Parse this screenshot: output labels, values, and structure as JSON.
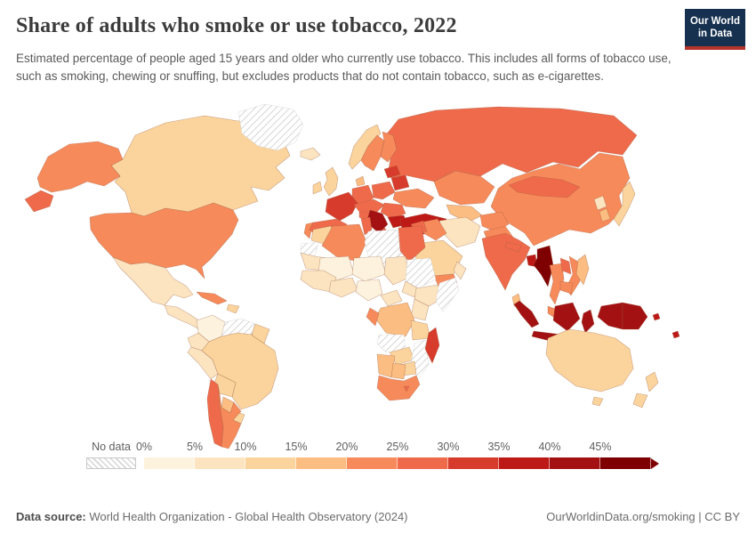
{
  "header": {
    "title": "Share of adults who smoke or use tobacco, 2022",
    "subtitle": "Estimated percentage of people aged 15 years and older who currently use tobacco. This includes all forms of tobacco use, such as smoking, chewing or snuffing, but excludes products that do not contain tobacco, such as e-cigarettes.",
    "logo": {
      "line1": "Our World",
      "line2": "in Data",
      "bg": "#16304f",
      "accent": "#b5332b"
    }
  },
  "legend": {
    "no_data_label": "No data"
  },
  "footer": {
    "source_label": "Data source:",
    "source_text": " World Health Organization - Global Health Observatory (2024)",
    "link": "OurWorldinData.org/smoking | CC BY"
  },
  "chart_data": {
    "type": "choropleth_map",
    "geography": "world",
    "title": "Share of adults who smoke or use tobacco, 2022",
    "year": "2022",
    "unit": "% of adults aged 15+ who currently use tobacco",
    "legend_position": "bottom",
    "color_bins": [
      {
        "tick": "0%",
        "range": "0-5%",
        "color": "#fdf2dd"
      },
      {
        "tick": "5%",
        "range": "5-10%",
        "color": "#fce4c0"
      },
      {
        "tick": "10%",
        "range": "10-15%",
        "color": "#fbd49d"
      },
      {
        "tick": "15%",
        "range": "15-20%",
        "color": "#fbbd81"
      },
      {
        "tick": "20%",
        "range": "20-25%",
        "color": "#f78a5a"
      },
      {
        "tick": "25%",
        "range": "25-30%",
        "color": "#ef6a4b"
      },
      {
        "tick": "30%",
        "range": "30-35%",
        "color": "#d73b2b"
      },
      {
        "tick": "35%",
        "range": "35-40%",
        "color": "#bd1a17"
      },
      {
        "tick": "40%",
        "range": "40-45%",
        "color": "#a31113"
      },
      {
        "tick": "45%",
        "range": "45%+",
        "color": "#7f0000"
      }
    ],
    "no_data": {
      "label": "No data",
      "countries": [
        "Greenland",
        "Venezuela",
        "Western Sahara",
        "Libya",
        "Sudan",
        "Somalia",
        "Angola",
        "Mozambique"
      ]
    },
    "regions": {
      "united-states": {
        "label": "United States",
        "bin": "20-25%",
        "color": "#f78a5a"
      },
      "canada": {
        "label": "Canada",
        "bin": "10-15%",
        "color": "#fbd49d"
      },
      "greenland": {
        "label": "Greenland",
        "bin": "No data",
        "color": null
      },
      "mexico": {
        "label": "Mexico",
        "bin": "5-10%",
        "color": "#fce4c0"
      },
      "central-america": {
        "label": "Central America",
        "bin": "5-10%",
        "color": "#fce4c0"
      },
      "cuba": {
        "label": "Cuba",
        "bin": "20-25%",
        "color": "#f78a5a"
      },
      "hispaniola": {
        "label": "Haiti / Dominican Rep.",
        "bin": "10-15%",
        "color": "#fbd49d"
      },
      "colombia": {
        "label": "Colombia",
        "bin": "0-5%",
        "color": "#fdf2dd"
      },
      "venezuela": {
        "label": "Venezuela",
        "bin": "No data",
        "color": null
      },
      "guyanas": {
        "label": "Guyana / Suriname",
        "bin": "10-15%",
        "color": "#fbd49d"
      },
      "ecuador": {
        "label": "Ecuador",
        "bin": "5-10%",
        "color": "#fce4c0"
      },
      "peru": {
        "label": "Peru",
        "bin": "5-10%",
        "color": "#fce4c0"
      },
      "brazil": {
        "label": "Brazil",
        "bin": "10-15%",
        "color": "#fbd49d"
      },
      "bolivia": {
        "label": "Bolivia",
        "bin": "10-15%",
        "color": "#fbd49d"
      },
      "paraguay": {
        "label": "Paraguay",
        "bin": "15-20%",
        "color": "#fbbd81"
      },
      "uruguay": {
        "label": "Uruguay",
        "bin": "10-15%",
        "color": "#fbd49d"
      },
      "chile": {
        "label": "Chile",
        "bin": "25-30%",
        "color": "#ef6a4b"
      },
      "argentina": {
        "label": "Argentina",
        "bin": "20-25%",
        "color": "#f78a5a"
      },
      "iceland": {
        "label": "Iceland",
        "bin": "5-10%",
        "color": "#fce4c0"
      },
      "ireland": {
        "label": "Ireland",
        "bin": "10-15%",
        "color": "#fbd49d"
      },
      "united-kingdom": {
        "label": "United Kingdom",
        "bin": "10-15%",
        "color": "#fbd49d"
      },
      "norway": {
        "label": "Norway",
        "bin": "10-15%",
        "color": "#fbd49d"
      },
      "sweden": {
        "label": "Sweden",
        "bin": "20-25%",
        "color": "#f78a5a"
      },
      "finland": {
        "label": "Finland",
        "bin": "20-25%",
        "color": "#f78a5a"
      },
      "denmark": {
        "label": "Denmark",
        "bin": "15-20%",
        "color": "#fbbd81"
      },
      "germany": {
        "label": "Germany",
        "bin": "25-30%",
        "color": "#ef6a4b"
      },
      "france": {
        "label": "France",
        "bin": "30-35%",
        "color": "#d73b2b"
      },
      "spain": {
        "label": "Spain",
        "bin": "25-30%",
        "color": "#ef6a4b"
      },
      "portugal": {
        "label": "Portugal",
        "bin": "20-25%",
        "color": "#f78a5a"
      },
      "italy": {
        "label": "Italy",
        "bin": "25-30%",
        "color": "#ef6a4b"
      },
      "central-europe": {
        "label": "Central Europe",
        "bin": "25-30%",
        "color": "#ef6a4b"
      },
      "poland": {
        "label": "Poland",
        "bin": "25-30%",
        "color": "#ef6a4b"
      },
      "baltics": {
        "label": "Baltic states",
        "bin": "30-35%",
        "color": "#d73b2b"
      },
      "belarus": {
        "label": "Belarus",
        "bin": "30-35%",
        "color": "#d73b2b"
      },
      "ukraine": {
        "label": "Ukraine",
        "bin": "20-25%",
        "color": "#f78a5a"
      },
      "romania": {
        "label": "Romania",
        "bin": "25-30%",
        "color": "#ef6a4b"
      },
      "serbia-balkans": {
        "label": "Serbia / Balkans",
        "bin": "40-45%",
        "color": "#a31113"
      },
      "bulgaria": {
        "label": "Bulgaria",
        "bin": "35-40%",
        "color": "#bd1a17"
      },
      "greece": {
        "label": "Greece",
        "bin": "35-40%",
        "color": "#bd1a17"
      },
      "turkey": {
        "label": "Turkey",
        "bin": "35-40%",
        "color": "#bd1a17"
      },
      "russia": {
        "label": "Russia",
        "bin": "25-30%",
        "color": "#ef6a4b"
      },
      "kazakhstan": {
        "label": "Kazakhstan",
        "bin": "20-25%",
        "color": "#f78a5a"
      },
      "central-asia": {
        "label": "Uzbekistan / Turkmenistan",
        "bin": "15-20%",
        "color": "#fbbd81"
      },
      "iran": {
        "label": "Iran",
        "bin": "5-10%",
        "color": "#fce4c0"
      },
      "iraq": {
        "label": "Iraq",
        "bin": "20-25%",
        "color": "#f78a5a"
      },
      "syria": {
        "label": "Syria",
        "bin": "25-30%",
        "color": "#ef6a4b"
      },
      "jordan": {
        "label": "Jordan",
        "bin": "40-45%",
        "color": "#a31113"
      },
      "saudi-arabia": {
        "label": "Saudi Arabia",
        "bin": "10-15%",
        "color": "#fbd49d"
      },
      "yemen": {
        "label": "Yemen",
        "bin": "20-25%",
        "color": "#f78a5a"
      },
      "oman": {
        "label": "Oman",
        "bin": "5-10%",
        "color": "#fce4c0"
      },
      "afghanistan": {
        "label": "Afghanistan",
        "bin": "20-25%",
        "color": "#f78a5a"
      },
      "pakistan": {
        "label": "Pakistan",
        "bin": "20-25%",
        "color": "#f78a5a"
      },
      "morocco": {
        "label": "Morocco",
        "bin": "10-15%",
        "color": "#fbd49d"
      },
      "western-sahara": {
        "label": "Western Sahara",
        "bin": "No data",
        "color": null
      },
      "mauritania": {
        "label": "Mauritania",
        "bin": "5-10%",
        "color": "#fce4c0"
      },
      "algeria": {
        "label": "Algeria",
        "bin": "20-25%",
        "color": "#f78a5a"
      },
      "tunisia": {
        "label": "Tunisia",
        "bin": "25-30%",
        "color": "#ef6a4b"
      },
      "libya": {
        "label": "Libya",
        "bin": "No data",
        "color": null
      },
      "egypt": {
        "label": "Egypt",
        "bin": "25-30%",
        "color": "#ef6a4b"
      },
      "mali": {
        "label": "Mali",
        "bin": "0-5%",
        "color": "#fdf2dd"
      },
      "niger": {
        "label": "Niger",
        "bin": "0-5%",
        "color": "#fdf2dd"
      },
      "chad": {
        "label": "Chad",
        "bin": "5-10%",
        "color": "#fce4c0"
      },
      "sudan": {
        "label": "Sudan",
        "bin": "No data",
        "color": null
      },
      "south-sudan": {
        "label": "South Sudan",
        "bin": "5-10%",
        "color": "#fce4c0"
      },
      "west-africa": {
        "label": "Senegal / Guinea",
        "bin": "5-10%",
        "color": "#fce4c0"
      },
      "ghana-coast": {
        "label": "Côte d'Ivoire / Ghana",
        "bin": "5-10%",
        "color": "#fce4c0"
      },
      "nigeria": {
        "label": "Nigeria",
        "bin": "0-5%",
        "color": "#fdf2dd"
      },
      "cameroon": {
        "label": "Cameroon",
        "bin": "5-10%",
        "color": "#fce4c0"
      },
      "ethiopia": {
        "label": "Ethiopia",
        "bin": "5-10%",
        "color": "#fce4c0"
      },
      "somalia": {
        "label": "Somalia",
        "bin": "No data",
        "color": null
      },
      "kenya": {
        "label": "Kenya",
        "bin": "5-10%",
        "color": "#fce4c0"
      },
      "dr-congo": {
        "label": "Democratic Republic of Congo",
        "bin": "15-20%",
        "color": "#fbbd81"
      },
      "congo": {
        "label": "Congo",
        "bin": "20-25%",
        "color": "#f78a5a"
      },
      "angola": {
        "label": "Angola",
        "bin": "No data",
        "color": null
      },
      "tanzania": {
        "label": "Tanzania",
        "bin": "10-15%",
        "color": "#fbd49d"
      },
      "zambia": {
        "label": "Zambia",
        "bin": "10-15%",
        "color": "#fbd49d"
      },
      "mozambique": {
        "label": "Mozambique",
        "bin": "No data",
        "color": null
      },
      "zimbabwe": {
        "label": "Zimbabwe",
        "bin": "10-15%",
        "color": "#fbd49d"
      },
      "namibia": {
        "label": "Namibia",
        "bin": "15-20%",
        "color": "#fbbd81"
      },
      "botswana": {
        "label": "Botswana",
        "bin": "15-20%",
        "color": "#fbbd81"
      },
      "south-africa": {
        "label": "South Africa",
        "bin": "20-25%",
        "color": "#f78a5a"
      },
      "lesotho": {
        "label": "Lesotho",
        "bin": "25-30%",
        "color": "#ef6a4b"
      },
      "madagascar": {
        "label": "Madagascar",
        "bin": "30-35%",
        "color": "#d73b2b"
      },
      "india": {
        "label": "India",
        "bin": "25-30%",
        "color": "#ef6a4b"
      },
      "nepal": {
        "label": "Nepal",
        "bin": "25-30%",
        "color": "#ef6a4b"
      },
      "bangladesh": {
        "label": "Bangladesh",
        "bin": "35-40%",
        "color": "#bd1a17"
      },
      "sri-lanka": {
        "label": "Sri Lanka",
        "bin": "15-20%",
        "color": "#fbbd81"
      },
      "myanmar": {
        "label": "Myanmar",
        "bin": "45%+",
        "color": "#7f0000"
      },
      "thailand": {
        "label": "Thailand",
        "bin": "20-25%",
        "color": "#f78a5a"
      },
      "laos": {
        "label": "Laos",
        "bin": "25-30%",
        "color": "#ef6a4b"
      },
      "vietnam": {
        "label": "Vietnam",
        "bin": "20-25%",
        "color": "#f78a5a"
      },
      "cambodia": {
        "label": "Cambodia",
        "bin": "20-25%",
        "color": "#f78a5a"
      },
      "malaysia": {
        "label": "Malaysia",
        "bin": "20-25%",
        "color": "#f78a5a"
      },
      "china": {
        "label": "China",
        "bin": "20-25%",
        "color": "#f78a5a"
      },
      "mongolia": {
        "label": "Mongolia",
        "bin": "25-30%",
        "color": "#ef6a4b"
      },
      "north-korea": {
        "label": "North Korea",
        "bin": "5-10%",
        "color": "#fce4c0"
      },
      "south-korea": {
        "label": "South Korea",
        "bin": "15-20%",
        "color": "#fbbd81"
      },
      "japan": {
        "label": "Japan",
        "bin": "10-15%",
        "color": "#fbd49d"
      },
      "philippines": {
        "label": "Philippines",
        "bin": "15-20%",
        "color": "#fbbd81"
      },
      "indonesia": {
        "label": "Indonesia",
        "bin": "40-45%",
        "color": "#a31113"
      },
      "papua-new-guinea": {
        "label": "Papua New Guinea",
        "bin": "40-45%",
        "color": "#a31113"
      },
      "solomon-islands": {
        "label": "Solomon Islands",
        "bin": "35-40%",
        "color": "#bd1a17"
      },
      "fiji": {
        "label": "Fiji",
        "bin": "35-40%",
        "color": "#bd1a17"
      },
      "australia": {
        "label": "Australia",
        "bin": "10-15%",
        "color": "#fbd49d"
      },
      "new-zealand": {
        "label": "New Zealand",
        "bin": "10-15%",
        "color": "#fbd49d"
      }
    }
  }
}
